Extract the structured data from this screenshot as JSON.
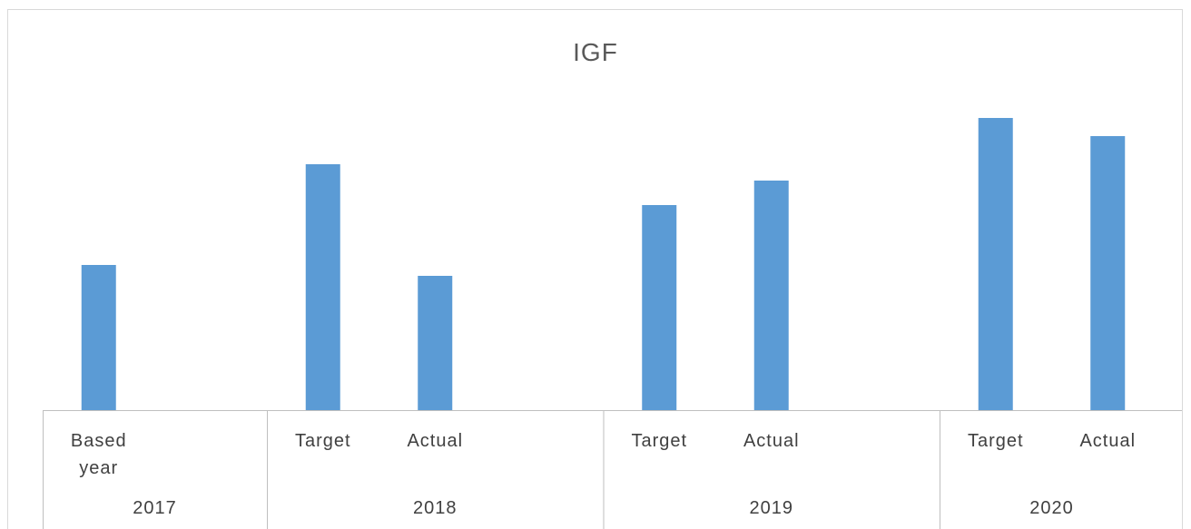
{
  "chart_data": {
    "type": "bar",
    "title": "IGF",
    "color": "#5b9bd5",
    "ylim": [
      0,
      340
    ],
    "groups": [
      {
        "name": "2017",
        "categories": [
          "Based year",
          null
        ],
        "values": [
          160,
          null
        ]
      },
      {
        "name": "2018",
        "categories": [
          "Target",
          "Actual",
          null
        ],
        "values": [
          271,
          148,
          null
        ]
      },
      {
        "name": "2019",
        "categories": [
          "Target",
          "Actual",
          null
        ],
        "values": [
          226,
          253,
          null
        ]
      },
      {
        "name": "2020",
        "categories": [
          "Target",
          "Actual"
        ],
        "values": [
          322,
          302
        ]
      }
    ]
  }
}
